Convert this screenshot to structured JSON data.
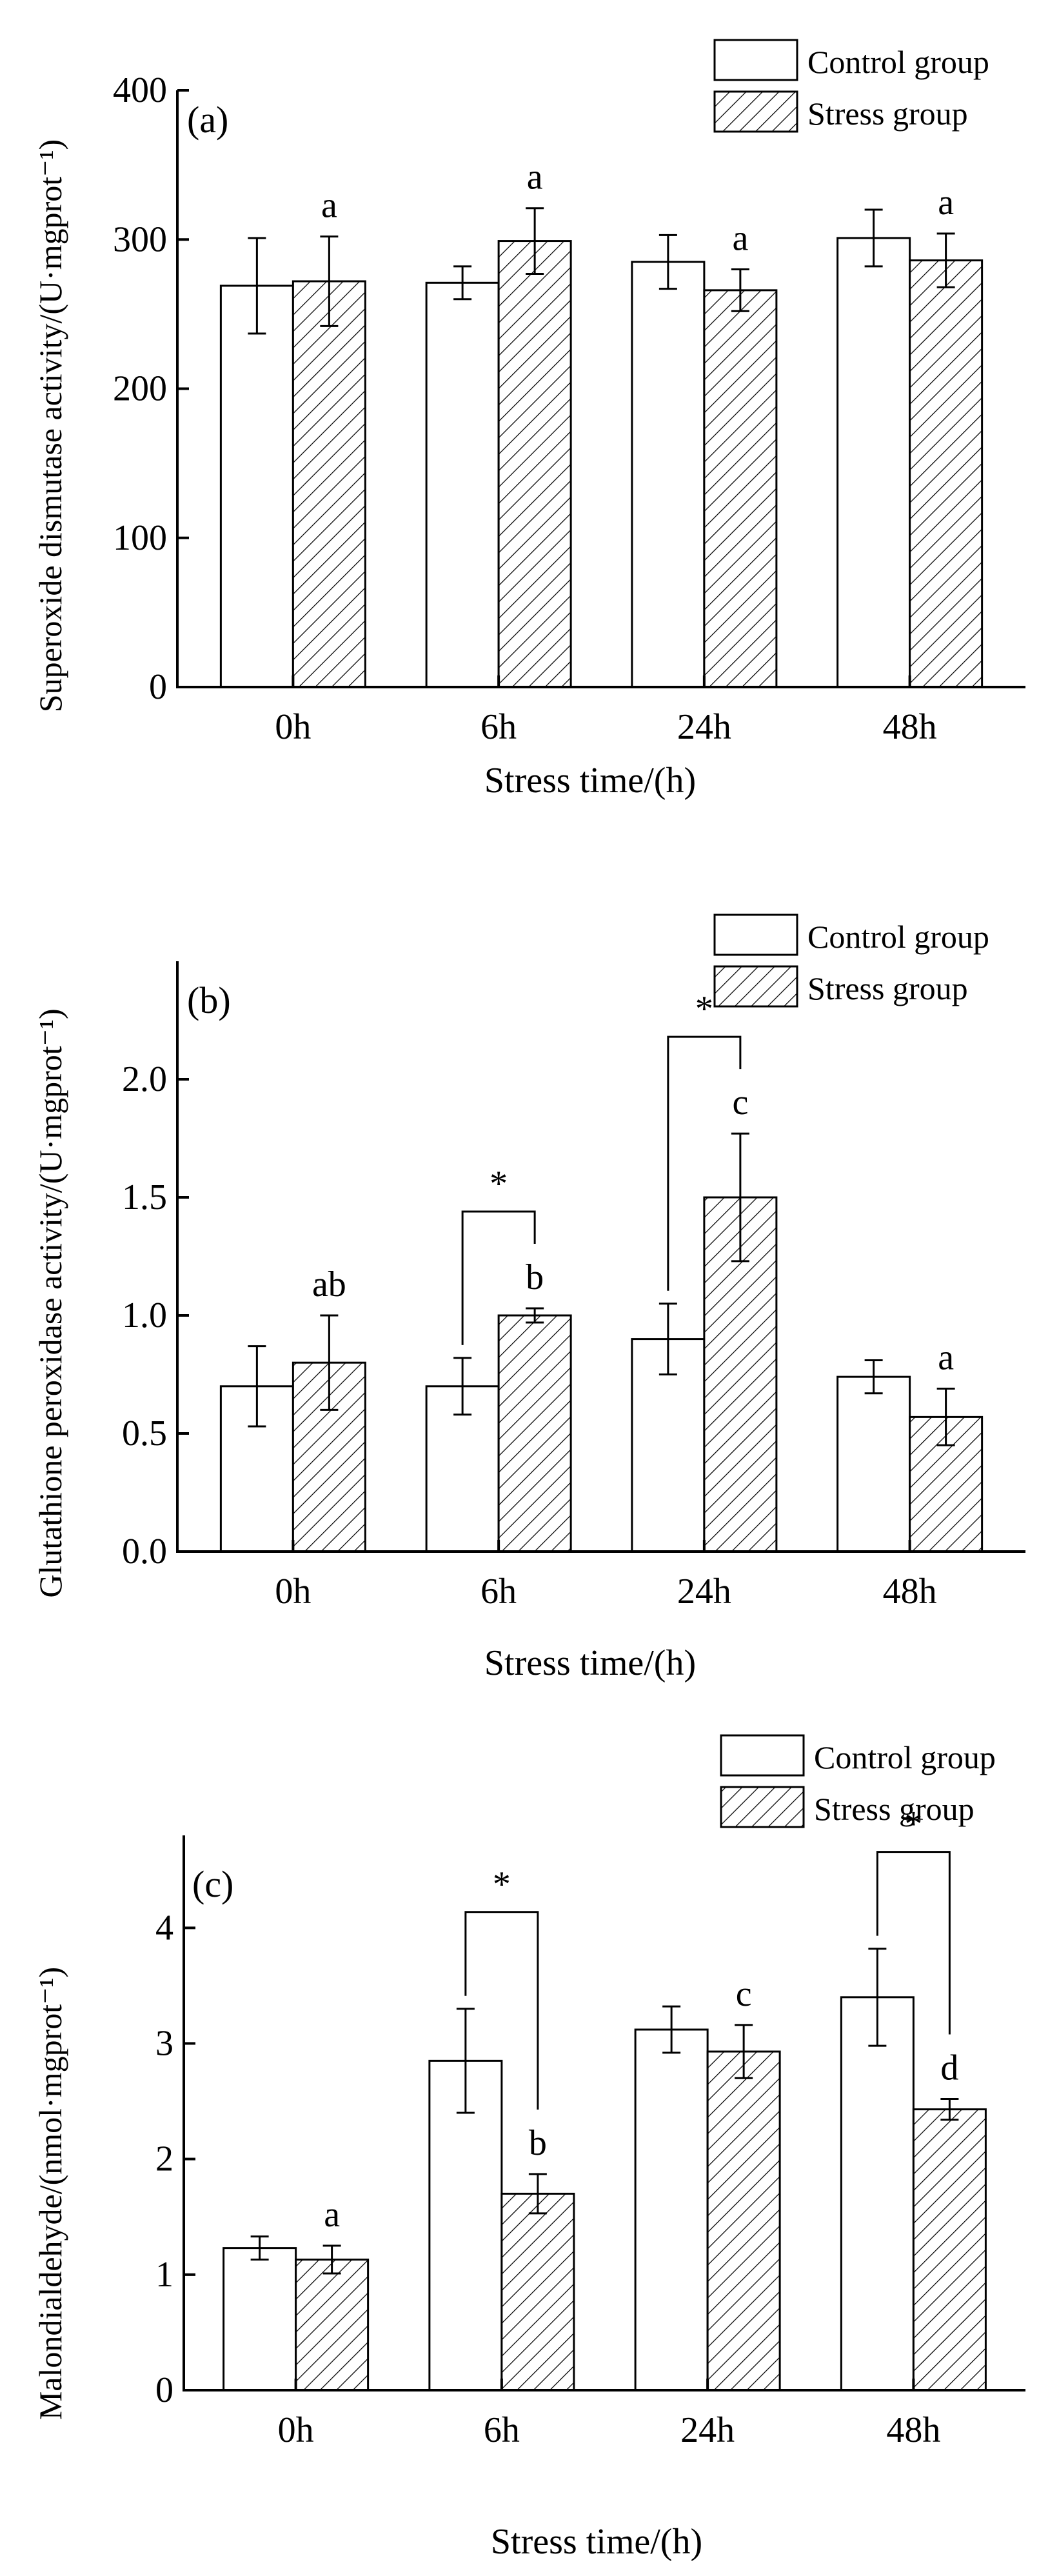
{
  "colors": {
    "control_fill": "#ffffff",
    "stress_hatch": "#000000",
    "axis": "#000000"
  },
  "chart_data": [
    {
      "type": "bar",
      "panel_label": "(a)",
      "categories": [
        "0h",
        "6h",
        "24h",
        "48h"
      ],
      "xlabel": "Stress time/(h)",
      "ylabel": "Superoxide dismutase activity/(U·mgprot⁻¹)",
      "ylim": [
        0,
        400
      ],
      "yticks": [
        "0",
        "100",
        "200",
        "300",
        "400"
      ],
      "legend": [
        "Control group",
        "Stress group"
      ],
      "series": [
        {
          "name": "Control group",
          "values": [
            269,
            271,
            285,
            301
          ],
          "errors": [
            32,
            11,
            18,
            19
          ]
        },
        {
          "name": "Stress group",
          "values": [
            272,
            299,
            266,
            286
          ],
          "errors": [
            30,
            22,
            14,
            18
          ]
        }
      ],
      "significance_letters": [
        "a",
        "a",
        "a",
        "a"
      ],
      "significance_brackets": []
    },
    {
      "type": "bar",
      "panel_label": "(b)",
      "categories": [
        "0h",
        "6h",
        "24h",
        "48h"
      ],
      "xlabel": "Stress time/(h)",
      "ylabel": "Glutathione peroxidase activity/(U·mgprot⁻¹)",
      "ylim": [
        0,
        2.5
      ],
      "yticks": [
        "0.0",
        "0.5",
        "1.0",
        "1.5",
        "2.0"
      ],
      "legend": [
        "Control group",
        "Stress group"
      ],
      "series": [
        {
          "name": "Control group",
          "values": [
            0.7,
            0.7,
            0.9,
            0.74
          ],
          "errors": [
            0.17,
            0.12,
            0.15,
            0.07
          ]
        },
        {
          "name": "Stress group",
          "values": [
            0.8,
            1.0,
            1.5,
            0.57
          ],
          "errors": [
            0.2,
            0.03,
            0.27,
            0.12
          ]
        }
      ],
      "significance_letters": [
        "ab",
        "b",
        "c",
        "a"
      ],
      "significance_brackets": [
        {
          "category": "6h",
          "label": "*"
        },
        {
          "category": "24h",
          "label": "*"
        }
      ]
    },
    {
      "type": "bar",
      "panel_label": "(c)",
      "categories": [
        "0h",
        "6h",
        "24h",
        "48h"
      ],
      "xlabel": "Stress time/(h)",
      "ylabel": "Malondialdehyde/(nmol·mgprot⁻¹)",
      "ylim": [
        0,
        4.8
      ],
      "yticks": [
        "0",
        "1",
        "2",
        "3",
        "4"
      ],
      "legend": [
        "Control group",
        "Stress group"
      ],
      "series": [
        {
          "name": "Control group",
          "values": [
            1.23,
            2.85,
            3.12,
            3.4
          ],
          "errors": [
            0.1,
            0.45,
            0.2,
            0.42
          ]
        },
        {
          "name": "Stress group",
          "values": [
            1.13,
            1.7,
            2.93,
            2.43
          ],
          "errors": [
            0.12,
            0.17,
            0.23,
            0.09
          ]
        }
      ],
      "significance_letters": [
        "a",
        "b",
        "c",
        "d"
      ],
      "significance_brackets": [
        {
          "category": "6h",
          "label": "*"
        },
        {
          "category": "48h",
          "label": "*"
        }
      ]
    }
  ]
}
